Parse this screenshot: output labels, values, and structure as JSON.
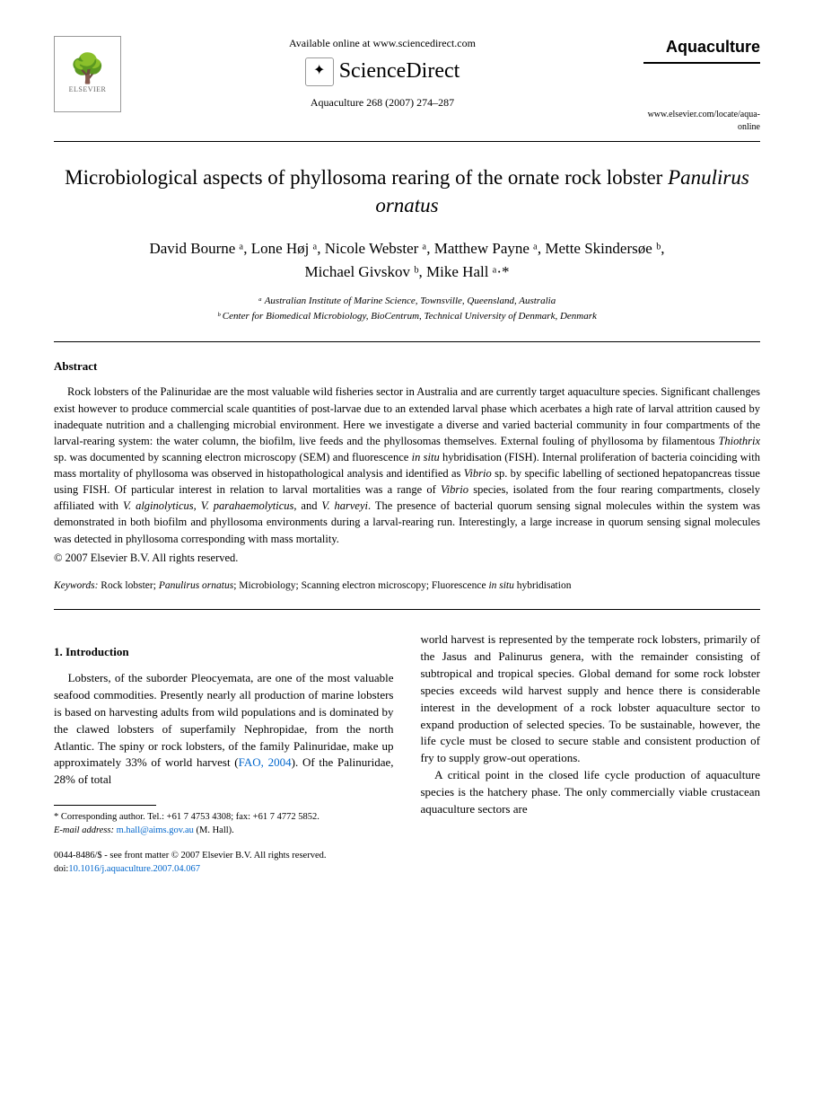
{
  "header": {
    "publisher_name": "ELSEVIER",
    "available_online": "Available online at www.sciencedirect.com",
    "sciencedirect": "ScienceDirect",
    "citation": "Aquaculture 268 (2007) 274–287",
    "journal_name": "Aquaculture",
    "journal_url": "www.elsevier.com/locate/aqua-online"
  },
  "article": {
    "title_pre": "Microbiological aspects of phyllosoma rearing of the ornate rock lobster ",
    "title_ital": "Panulirus ornatus",
    "authors_line1": "David Bourne ᵃ, Lone Høj ᵃ, Nicole Webster ᵃ, Matthew Payne ᵃ, Mette Skindersøe ᵇ,",
    "authors_line2": "Michael Givskov ᵇ, Mike Hall ᵃ·*",
    "affil_a": "ᵃ Australian Institute of Marine Science, Townsville, Queensland, Australia",
    "affil_b": "ᵇ Center for Biomedical Microbiology, BioCentrum, Technical University of Denmark, Denmark"
  },
  "abstract": {
    "heading": "Abstract",
    "body_parts": [
      "Rock lobsters of the Palinuridae are the most valuable wild fisheries sector in Australia and are currently target aquaculture species. Significant challenges exist however to produce commercial scale quantities of post-larvae due to an extended larval phase which acerbates a high rate of larval attrition caused by inadequate nutrition and a challenging microbial environment. Here we investigate a diverse and varied bacterial community in four compartments of the larval-rearing system: the water column, the biofilm, live feeds and the phyllosomas themselves. External fouling of phyllosoma by filamentous ",
      "Thiothrix",
      " sp. was documented by scanning electron microscopy (SEM) and fluorescence ",
      "in situ",
      " hybridisation (FISH). Internal proliferation of bacteria coinciding with mass mortality of phyllosoma was observed in histopathological analysis and identified as ",
      "Vibrio",
      " sp. by specific labelling of sectioned hepatopancreas tissue using FISH. Of particular interest in relation to larval mortalities was a range of ",
      "Vibrio",
      " species, isolated from the four rearing compartments, closely affiliated with ",
      "V. alginolyticus",
      ", ",
      "V. parahaemolyticus",
      ", and ",
      "V. harveyi",
      ". The presence of bacterial quorum sensing signal molecules within the system was demonstrated in both biofilm and phyllosoma environments during a larval-rearing run. Interestingly, a large increase in quorum sensing signal molecules was detected in phyllosoma corresponding with mass mortality."
    ],
    "copyright": "© 2007 Elsevier B.V. All rights reserved.",
    "keywords_label": "Keywords:",
    "keywords_parts": [
      " Rock lobster; ",
      "Panulirus ornatus",
      "; Microbiology; Scanning electron microscopy; Fluorescence ",
      "in situ",
      " hybridisation"
    ]
  },
  "intro": {
    "heading": "1. Introduction",
    "col1_p1_pre": "Lobsters, of the suborder Pleocyemata, are one of the most valuable seafood commodities. Presently nearly all production of marine lobsters is based on harvesting adults from wild populations and is dominated by the clawed lobsters of superfamily Nephropidae, from the north Atlantic. The spiny or rock lobsters, of the family Palinuridae, make up approximately 33% of world harvest (",
    "col1_ref": "FAO, 2004",
    "col1_p1_post": "). Of the Palinuridae, 28% of total",
    "col2_p1_pre": "world harvest is represented by the temperate rock lobsters, primarily of the ",
    "col2_ital1": "Jasus",
    "col2_mid1": " and ",
    "col2_ital2": "Palinurus",
    "col2_p1_post": " genera, with the remainder consisting of subtropical and tropical species. Global demand for some rock lobster species exceeds wild harvest supply and hence there is considerable interest in the development of a rock lobster aquaculture sector to expand production of selected species. To be sustainable, however, the life cycle must be closed to secure stable and consistent production of fry to supply grow-out operations.",
    "col2_p2": "A critical point in the closed life cycle production of aquaculture species is the hatchery phase. The only commercially viable crustacean aquaculture sectors are"
  },
  "footnote": {
    "corr": "* Corresponding author. Tel.: +61 7 4753 4308; fax: +61 7 4772 5852.",
    "email_label": "E-mail address:",
    "email": "m.hall@aims.gov.au",
    "email_who": " (M. Hall)."
  },
  "footer": {
    "issn_line": "0044-8486/$ - see front matter © 2007 Elsevier B.V. All rights reserved.",
    "doi_label": "doi:",
    "doi": "10.1016/j.aquaculture.2007.04.067"
  }
}
